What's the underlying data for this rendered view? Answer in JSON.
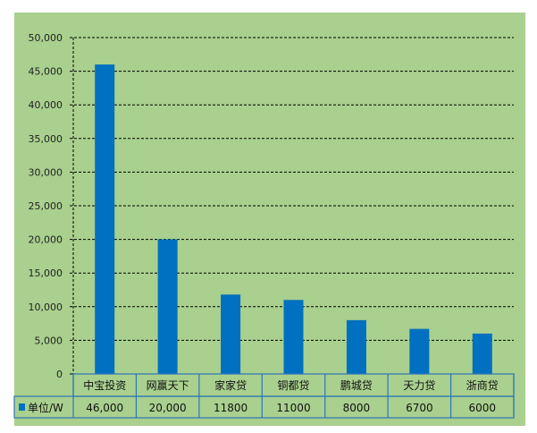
{
  "colors": {
    "background": "#a9d08e",
    "bar": "#0070c0",
    "grid": "#000000",
    "table_border": "#2e75b6"
  },
  "chart_data": {
    "type": "bar",
    "categories": [
      "中宝投资",
      "网赢天下",
      "家家贷",
      "铜都贷",
      "鹏城贷",
      "天力贷",
      "浙商贷"
    ],
    "series": [
      {
        "name": "单位/W",
        "values": [
          46000,
          20000,
          11800,
          11000,
          8000,
          6700,
          6000
        ]
      }
    ],
    "data_labels": [
      "46,000",
      "20,000",
      "11800",
      "11000",
      "8000",
      "6700",
      "6000"
    ],
    "ylim": [
      0,
      50000
    ],
    "yticks": [
      "0",
      "5,000",
      "10,000",
      "15,000",
      "20,000",
      "25,000",
      "30,000",
      "35,000",
      "40,000",
      "45,000",
      "50,000"
    ],
    "grid": true,
    "grid_style": "dashed",
    "legend": "data-table",
    "title": "",
    "xlabel": "",
    "ylabel": ""
  }
}
